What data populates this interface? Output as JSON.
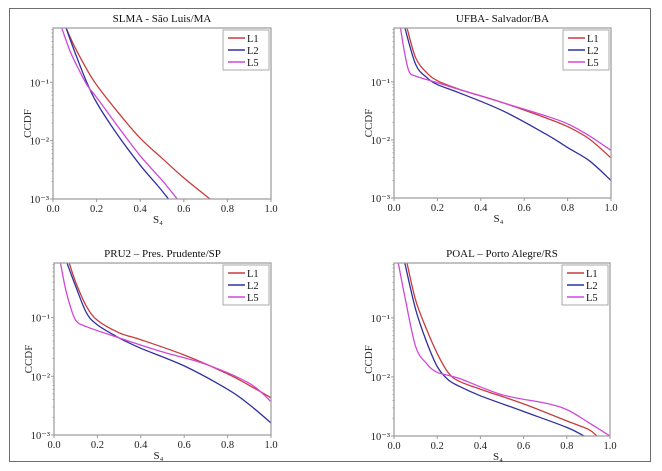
{
  "colors": {
    "L1": "#c83c3c",
    "L2": "#3030a0",
    "L5": "#d048d8",
    "axis": "#9a9a9a"
  },
  "chart_data": [
    {
      "type": "line",
      "title": "SLMA  - São Luis/MA",
      "xlabel": "S₄",
      "ylabel": "CCDF",
      "xlim": [
        0.0,
        1.0
      ],
      "ylim": [
        0.001,
        0.85
      ],
      "yscale": "log",
      "xticks": [
        "0.0",
        "0.2",
        "0.4",
        "0.6",
        "0.8",
        "1.0"
      ],
      "yticks": [
        "10⁻¹",
        "10⁻²",
        "10⁻³"
      ],
      "legend": "top-right",
      "series": [
        {
          "name": "L1",
          "x": [
            0.06,
            0.1,
            0.15,
            0.2,
            0.3,
            0.4,
            0.5,
            0.6,
            0.72
          ],
          "y": [
            0.85,
            0.4,
            0.18,
            0.09,
            0.03,
            0.011,
            0.005,
            0.0023,
            0.001
          ]
        },
        {
          "name": "L2",
          "x": [
            0.06,
            0.1,
            0.15,
            0.2,
            0.3,
            0.4,
            0.48,
            0.53
          ],
          "y": [
            0.85,
            0.33,
            0.11,
            0.045,
            0.012,
            0.0038,
            0.0017,
            0.001
          ]
        },
        {
          "name": "L5",
          "x": [
            0.04,
            0.08,
            0.12,
            0.16,
            0.2,
            0.3,
            0.4,
            0.5,
            0.57
          ],
          "y": [
            0.85,
            0.33,
            0.16,
            0.085,
            0.055,
            0.017,
            0.0055,
            0.0021,
            0.001
          ]
        }
      ]
    },
    {
      "type": "line",
      "title": "UFBA- Salvador/BA",
      "xlabel": "S₄",
      "ylabel": "CCDF",
      "xlim": [
        0.0,
        1.0
      ],
      "ylim": [
        0.001,
        0.85
      ],
      "yscale": "log",
      "xticks": [
        "0.0",
        "0.2",
        "0.4",
        "0.6",
        "0.8",
        "1.0"
      ],
      "yticks": [
        "10⁻¹",
        "10⁻²",
        "10⁻³"
      ],
      "legend": "top-right",
      "series": [
        {
          "name": "L1",
          "x": [
            0.06,
            0.1,
            0.15,
            0.2,
            0.3,
            0.5,
            0.7,
            0.8,
            0.9,
            1.0
          ],
          "y": [
            0.85,
            0.26,
            0.145,
            0.105,
            0.075,
            0.044,
            0.024,
            0.017,
            0.0104,
            0.0049
          ]
        },
        {
          "name": "L2",
          "x": [
            0.05,
            0.1,
            0.15,
            0.2,
            0.3,
            0.5,
            0.7,
            0.8,
            0.9,
            1.0
          ],
          "y": [
            0.85,
            0.2,
            0.12,
            0.09,
            0.065,
            0.032,
            0.0126,
            0.0074,
            0.0044,
            0.002
          ]
        },
        {
          "name": "L5",
          "x": [
            0.03,
            0.05,
            0.07,
            0.1,
            0.2,
            0.3,
            0.5,
            0.7,
            0.8,
            0.9,
            1.0
          ],
          "y": [
            0.85,
            0.3,
            0.15,
            0.126,
            0.097,
            0.074,
            0.044,
            0.026,
            0.019,
            0.0118,
            0.0066
          ]
        }
      ]
    },
    {
      "type": "line",
      "title": "PRU2 – Pres. Prudente/SP",
      "xlabel": "S₄",
      "ylabel": "CCDF",
      "xlim": [
        0.0,
        1.0
      ],
      "ylim": [
        0.001,
        0.85
      ],
      "yscale": "log",
      "xticks": [
        "0.0",
        "0.2",
        "0.4",
        "0.6",
        "0.8",
        "1.0"
      ],
      "yticks": [
        "10⁻¹",
        "10⁻²",
        "10⁻³"
      ],
      "legend": "top-right",
      "series": [
        {
          "name": "L1",
          "x": [
            0.07,
            0.1,
            0.15,
            0.2,
            0.3,
            0.4,
            0.6,
            0.8,
            0.9,
            1.0
          ],
          "y": [
            0.85,
            0.4,
            0.155,
            0.09,
            0.055,
            0.042,
            0.023,
            0.011,
            0.007,
            0.0043
          ]
        },
        {
          "name": "L2",
          "x": [
            0.06,
            0.1,
            0.15,
            0.2,
            0.3,
            0.4,
            0.6,
            0.8,
            0.9,
            1.0
          ],
          "y": [
            0.85,
            0.34,
            0.12,
            0.075,
            0.045,
            0.03,
            0.015,
            0.006,
            0.0033,
            0.0016
          ]
        },
        {
          "name": "L5",
          "x": [
            0.03,
            0.05,
            0.07,
            0.1,
            0.15,
            0.3,
            0.5,
            0.7,
            0.9,
            1.0
          ],
          "y": [
            0.85,
            0.35,
            0.18,
            0.09,
            0.07,
            0.045,
            0.026,
            0.016,
            0.0076,
            0.0037
          ]
        }
      ]
    },
    {
      "type": "line",
      "title": "POAL – Porto Alegre/RS",
      "xlabel": "S₄",
      "ylabel": "CCDF",
      "xlim": [
        0.0,
        1.0
      ],
      "ylim": [
        0.001,
        0.85
      ],
      "yscale": "log",
      "xticks": [
        "0.0",
        "0.2",
        "0.4",
        "0.6",
        "0.8",
        "1.0"
      ],
      "yticks": [
        "10⁻¹",
        "10⁻²",
        "10⁻³"
      ],
      "legend": "top-right",
      "series": [
        {
          "name": "L1",
          "x": [
            0.06,
            0.1,
            0.15,
            0.2,
            0.25,
            0.3,
            0.4,
            0.6,
            0.8,
            0.9,
            0.94
          ],
          "y": [
            0.85,
            0.2,
            0.065,
            0.025,
            0.012,
            0.0085,
            0.0062,
            0.0035,
            0.0018,
            0.0013,
            0.001
          ]
        },
        {
          "name": "L2",
          "x": [
            0.05,
            0.1,
            0.15,
            0.2,
            0.25,
            0.3,
            0.4,
            0.6,
            0.8,
            0.88
          ],
          "y": [
            0.85,
            0.14,
            0.04,
            0.015,
            0.009,
            0.007,
            0.0048,
            0.0026,
            0.0014,
            0.001
          ]
        },
        {
          "name": "L5",
          "x": [
            0.02,
            0.05,
            0.1,
            0.15,
            0.2,
            0.3,
            0.5,
            0.7,
            0.8,
            0.9,
            1.0
          ],
          "y": [
            0.85,
            0.23,
            0.033,
            0.017,
            0.012,
            0.0095,
            0.005,
            0.0036,
            0.0028,
            0.0017,
            0.001
          ]
        }
      ]
    }
  ]
}
